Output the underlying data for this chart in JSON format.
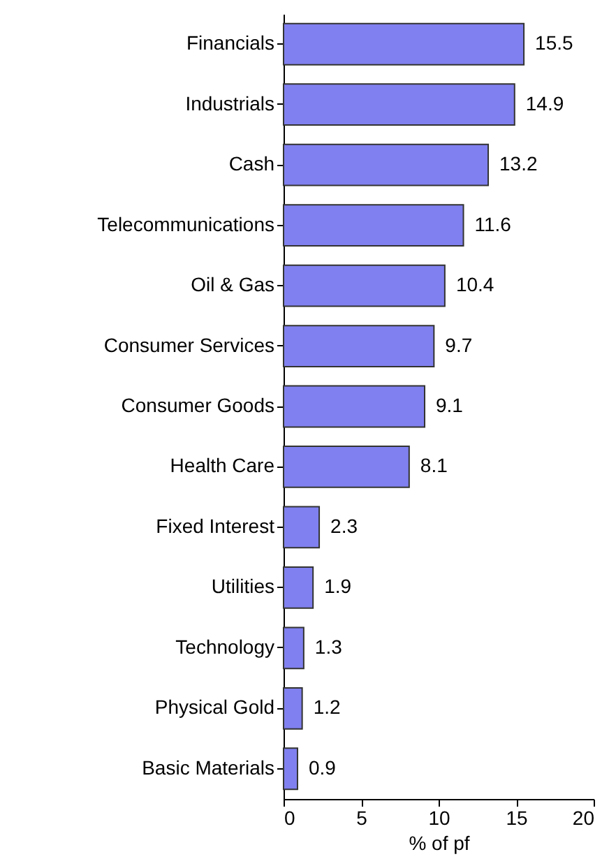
{
  "chart_data": {
    "type": "bar",
    "orientation": "horizontal",
    "xlabel": "% of pf",
    "categories": [
      "Financials",
      "Industrials",
      "Cash",
      "Telecommunications",
      "Oil & Gas",
      "Consumer Services",
      "Consumer Goods",
      "Health Care",
      "Fixed Interest",
      "Utilities",
      "Technology",
      "Physical Gold",
      "Basic Materials"
    ],
    "values": [
      15.5,
      14.9,
      13.2,
      11.6,
      10.4,
      9.7,
      9.1,
      8.1,
      2.3,
      1.9,
      1.3,
      1.2,
      0.9
    ],
    "color": "#8080f0",
    "xlim": [
      0,
      20
    ],
    "xticks": [
      0,
      5,
      10,
      15,
      20
    ],
    "grid": false,
    "data_labels": true
  }
}
